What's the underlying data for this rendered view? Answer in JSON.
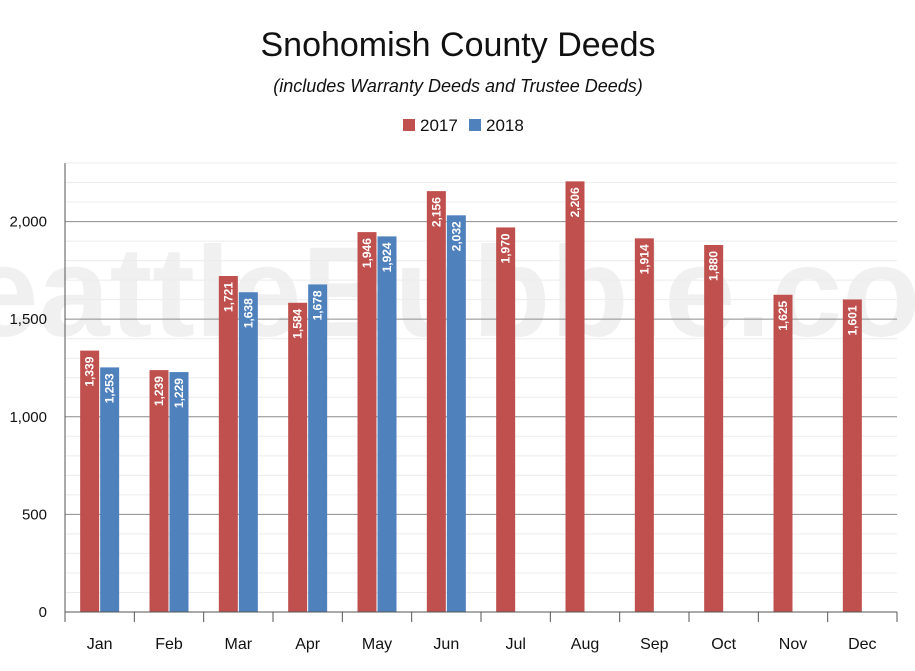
{
  "chart_data": {
    "type": "bar",
    "title": "Snohomish County Deeds",
    "subtitle": "(includes Warranty Deeds and Trustee Deeds)",
    "watermark": "SeattleBubble.com",
    "categories": [
      "Jan",
      "Feb",
      "Mar",
      "Apr",
      "May",
      "Jun",
      "Jul",
      "Aug",
      "Sep",
      "Oct",
      "Nov",
      "Dec"
    ],
    "series": [
      {
        "name": "2017",
        "color": "#c0504d",
        "values": [
          1339,
          1239,
          1721,
          1584,
          1946,
          2156,
          1970,
          2206,
          1914,
          1880,
          1625,
          1601
        ],
        "labels": [
          "1,339",
          "1,239",
          "1,721",
          "1,584",
          "1,946",
          "2,156",
          "1,970",
          "2,206",
          "1,914",
          "1,880",
          "1,625",
          "1,601"
        ]
      },
      {
        "name": "2018",
        "color": "#4f81bd",
        "values": [
          1253,
          1229,
          1638,
          1678,
          1924,
          2032,
          null,
          null,
          null,
          null,
          null,
          null
        ],
        "labels": [
          "1,253",
          "1,229",
          "1,638",
          "1,678",
          "1,924",
          "2,032",
          null,
          null,
          null,
          null,
          null,
          null
        ]
      }
    ],
    "yticks": [
      0,
      500,
      1000,
      1500,
      2000
    ],
    "ytick_labels": [
      "0",
      "500",
      "1,000",
      "1,500",
      "2,000"
    ],
    "ylim": [
      0,
      2300
    ],
    "legend_position": "top-center",
    "grid": true
  }
}
